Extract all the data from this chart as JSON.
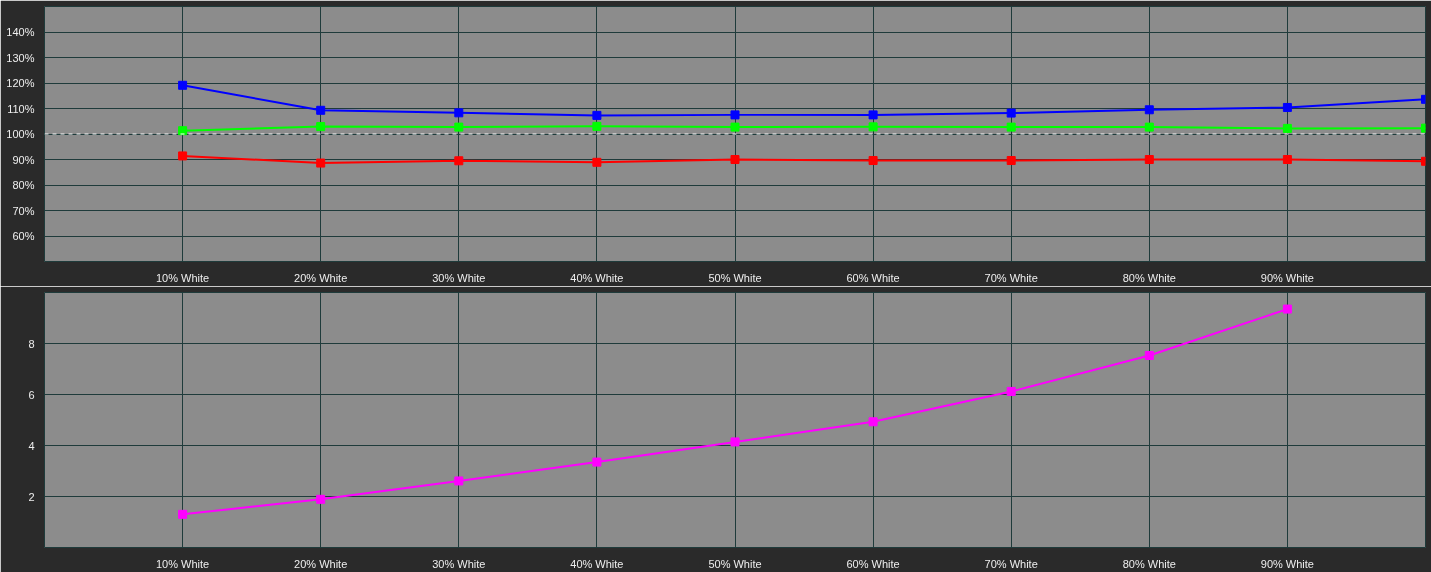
{
  "chart_data": [
    {
      "type": "line",
      "x": [
        10,
        20,
        30,
        40,
        50,
        60,
        70,
        80,
        90,
        100
      ],
      "series": [
        {
          "color": "#ff0000",
          "values": [
            91.4,
            88.6,
            89.5,
            88.9,
            90.0,
            89.6,
            89.6,
            90.0,
            90.0,
            89.3
          ]
        },
        {
          "color": "#00ff00",
          "values": [
            101.3,
            102.9,
            102.7,
            103.0,
            102.7,
            102.8,
            102.7,
            102.7,
            102.2,
            102.3
          ]
        },
        {
          "color": "#0000ff",
          "values": [
            119.1,
            109.3,
            108.3,
            107.3,
            107.5,
            107.5,
            108.2,
            109.5,
            110.4,
            113.6
          ]
        }
      ],
      "xlim": [
        0,
        100
      ],
      "xticks": [
        {
          "value": 10,
          "label": "10% White"
        },
        {
          "value": 20,
          "label": "20% White"
        },
        {
          "value": 30,
          "label": "30% White"
        },
        {
          "value": 40,
          "label": "40% White"
        },
        {
          "value": 50,
          "label": "50% White"
        },
        {
          "value": 60,
          "label": "60% White"
        },
        {
          "value": 70,
          "label": "70% White"
        },
        {
          "value": 80,
          "label": "80% White"
        },
        {
          "value": 90,
          "label": "90% White"
        }
      ],
      "ylim": [
        50,
        150
      ],
      "yticks": [
        {
          "value": 60,
          "label": "60%"
        },
        {
          "value": 70,
          "label": "70%"
        },
        {
          "value": 80,
          "label": "80%"
        },
        {
          "value": 90,
          "label": "90%"
        },
        {
          "value": 100,
          "label": "100%"
        },
        {
          "value": 110,
          "label": "110%"
        },
        {
          "value": 120,
          "label": "120%"
        },
        {
          "value": 130,
          "label": "130%"
        },
        {
          "value": 140,
          "label": "140%"
        }
      ],
      "grid": true,
      "marker": "square",
      "ref_lines": [
        {
          "axis": "y",
          "value": 100,
          "color": "#ffffff",
          "line_style": "dashed"
        }
      ]
    },
    {
      "type": "line",
      "series": [
        {
          "color": "#ff00ff",
          "x": [
            10,
            20,
            30,
            40,
            50,
            60,
            70,
            80,
            90
          ],
          "values": [
            1.3,
            1.89,
            2.61,
            3.35,
            4.14,
            4.93,
            6.12,
            7.53,
            9.35
          ]
        }
      ],
      "xlim": [
        0,
        100
      ],
      "xticks": [
        {
          "value": 10,
          "label": "10% White"
        },
        {
          "value": 20,
          "label": "20% White"
        },
        {
          "value": 30,
          "label": "30% White"
        },
        {
          "value": 40,
          "label": "40% White"
        },
        {
          "value": 50,
          "label": "50% White"
        },
        {
          "value": 60,
          "label": "60% White"
        },
        {
          "value": 70,
          "label": "70% White"
        },
        {
          "value": 80,
          "label": "80% White"
        },
        {
          "value": 90,
          "label": "90% White"
        }
      ],
      "ylim": [
        0,
        10
      ],
      "yticks": [
        2,
        4,
        6,
        8
      ],
      "grid": true,
      "marker": "square"
    }
  ]
}
